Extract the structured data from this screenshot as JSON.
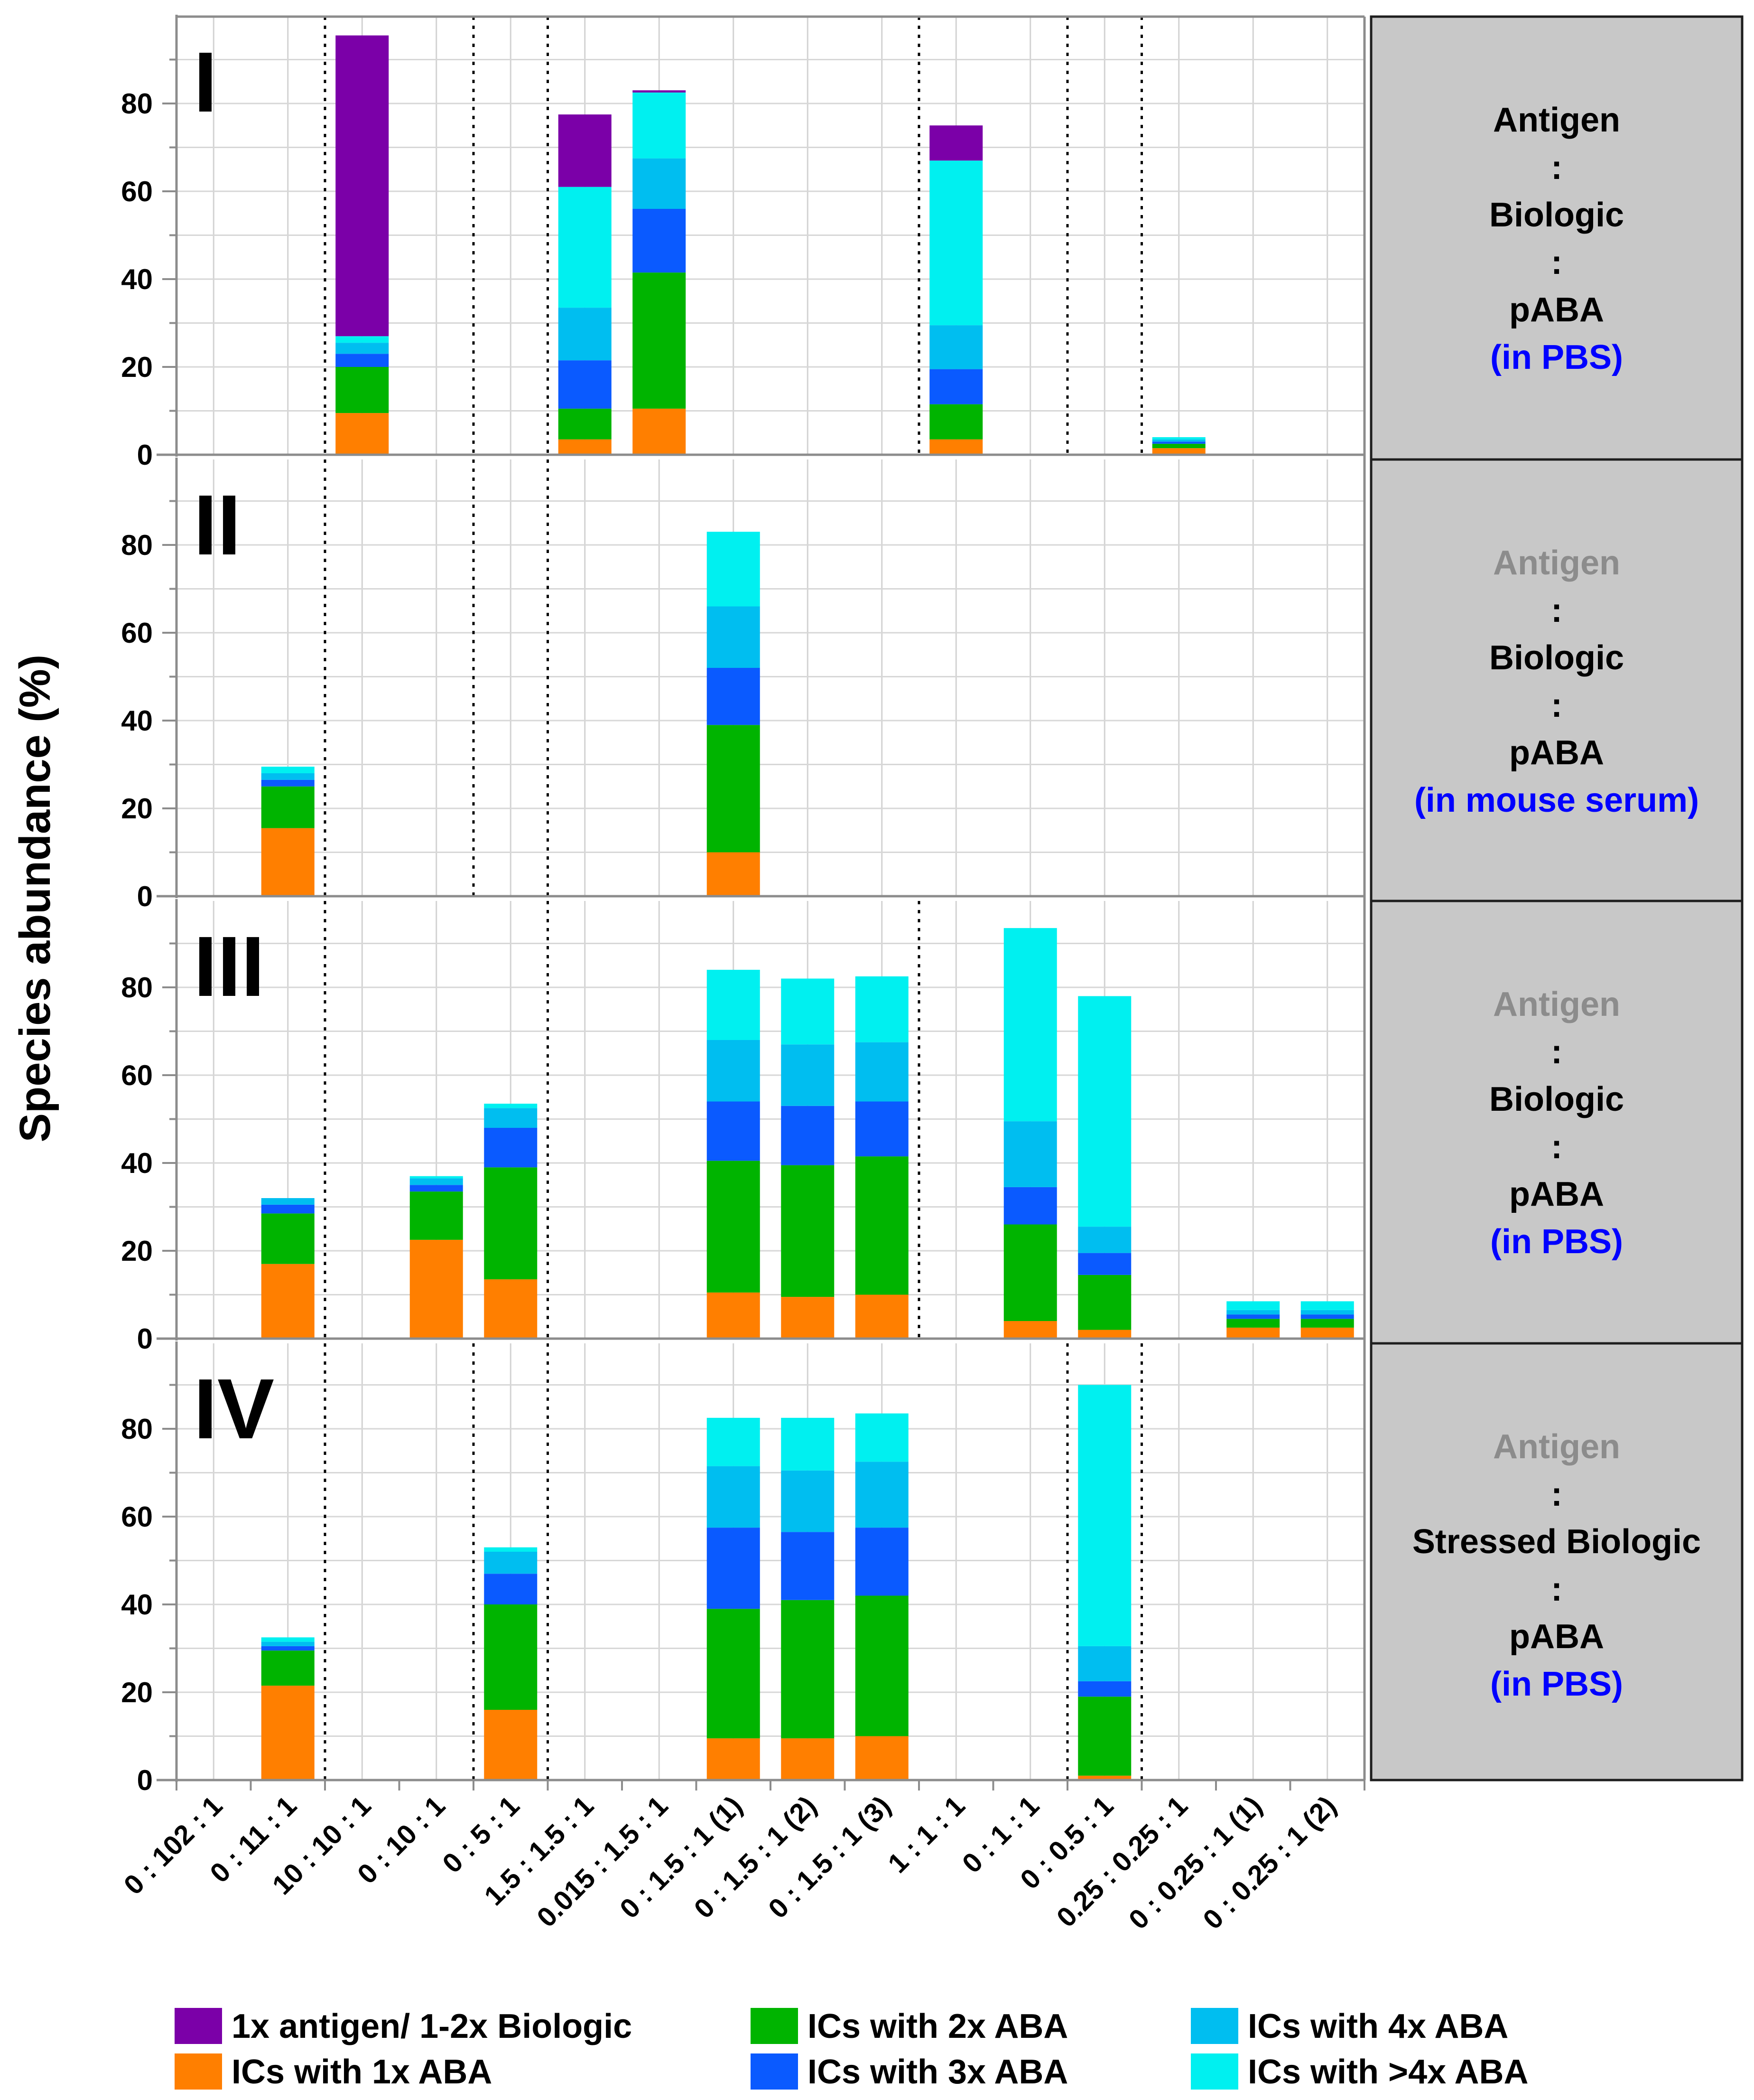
{
  "chart_data": {
    "type": "bar",
    "stacked": true,
    "ylabel": "Species abundance (%)",
    "ylim": [
      0,
      100
    ],
    "yticks": [
      0,
      20,
      40,
      60,
      80
    ],
    "categories": [
      "0 : 102 : 1",
      "0 : 11 : 1",
      "10 : 10 : 1",
      "0 : 10 : 1",
      "0 : 5 : 1",
      "1.5 : 1.5 : 1",
      "0.015 : 1.5 : 1",
      "0 : 1.5 : 1 (1)",
      "0 : 1.5 : 1 (2)",
      "0 : 1.5 : 1 (3)",
      "1 : 1 : 1",
      "0 : 1 : 1",
      "0 : 0.5 : 1",
      "0.25 : 0.25 : 1",
      "0 : 0.25 : 1 (1)",
      "0 : 0.25 : 1 (2)"
    ],
    "series_order": [
      "ICs with 1x ABA",
      "ICs with 2x ABA",
      "ICs with 3x ABA",
      "ICs with 4x ABA",
      "ICs with >4x ABA",
      "1x antigen/ 1-2x Biologic"
    ],
    "legend": [
      {
        "name": "1x antigen/ 1-2x Biologic",
        "color": "#7b00a8"
      },
      {
        "name": "ICs with 2x ABA",
        "color": "#00b400"
      },
      {
        "name": "ICs with 4x ABA",
        "color": "#00bef0"
      },
      {
        "name": "ICs with 1x ABA",
        "color": "#ff7f00"
      },
      {
        "name": "ICs with 3x ABA",
        "color": "#0a5aff"
      },
      {
        "name": "ICs with >4x ABA",
        "color": "#00f0f0"
      }
    ],
    "panels": [
      {
        "label": "I",
        "condition": [
          {
            "text": "Antigen",
            "color": "#000000"
          },
          {
            "text": ":",
            "color": "#000000"
          },
          {
            "text": "Biologic",
            "color": "#000000"
          },
          {
            "text": ":",
            "color": "#000000"
          },
          {
            "text": "pABA",
            "color": "#000000"
          },
          {
            "text": "(in PBS)",
            "color": "#0000ff"
          }
        ],
        "separators_after": [
          1,
          3,
          4,
          9,
          11,
          12
        ],
        "bars": [
          {
            "category_index": 2,
            "segments": [
              9.5,
              10.5,
              3,
              2.5,
              1.5,
              68.5
            ]
          },
          {
            "category_index": 5,
            "segments": [
              3.5,
              7,
              11,
              12,
              27.5,
              16.5
            ]
          },
          {
            "category_index": 6,
            "segments": [
              10.5,
              31,
              14.5,
              11.5,
              15,
              0.5
            ]
          },
          {
            "category_index": 10,
            "segments": [
              3.5,
              8,
              8,
              10,
              37.5,
              8
            ]
          },
          {
            "category_index": 13,
            "segments": [
              1.5,
              1,
              0.5,
              0.5,
              0.5,
              0
            ]
          }
        ]
      },
      {
        "label": "II",
        "condition": [
          {
            "text": "Antigen",
            "color": "#8c8c8c"
          },
          {
            "text": ":",
            "color": "#000000"
          },
          {
            "text": "Biologic",
            "color": "#000000"
          },
          {
            "text": ":",
            "color": "#000000"
          },
          {
            "text": "pABA",
            "color": "#000000"
          },
          {
            "text": "(in mouse serum)",
            "color": "#0000ff"
          }
        ],
        "separators_after": [
          1,
          3,
          4
        ],
        "bars": [
          {
            "category_index": 1,
            "segments": [
              15.5,
              9.5,
              1.5,
              1.5,
              1.5,
              0
            ]
          },
          {
            "category_index": 7,
            "segments": [
              10,
              29,
              13,
              14,
              17,
              0
            ]
          }
        ]
      },
      {
        "label": "III",
        "condition": [
          {
            "text": "Antigen",
            "color": "#8c8c8c"
          },
          {
            "text": ":",
            "color": "#000000"
          },
          {
            "text": "Biologic",
            "color": "#000000"
          },
          {
            "text": ":",
            "color": "#000000"
          },
          {
            "text": "pABA",
            "color": "#000000"
          },
          {
            "text": "(in PBS)",
            "color": "#0000ff"
          }
        ],
        "separators_after": [
          1,
          4,
          9
        ],
        "bars": [
          {
            "category_index": 1,
            "segments": [
              17,
              11.5,
              2,
              1.5,
              0,
              0
            ]
          },
          {
            "category_index": 3,
            "segments": [
              22.5,
              11,
              1.5,
              1.5,
              0.5,
              0
            ]
          },
          {
            "category_index": 4,
            "segments": [
              13.5,
              25.5,
              9,
              4.5,
              1,
              0
            ]
          },
          {
            "category_index": 7,
            "segments": [
              10.5,
              30,
              13.5,
              14,
              16,
              0
            ]
          },
          {
            "category_index": 8,
            "segments": [
              9.5,
              30,
              13.5,
              14,
              15,
              0
            ]
          },
          {
            "category_index": 9,
            "segments": [
              10,
              31.5,
              12.5,
              13.5,
              15,
              0
            ]
          },
          {
            "category_index": 11,
            "segments": [
              4,
              22,
              8.5,
              15,
              44,
              0
            ]
          },
          {
            "category_index": 12,
            "segments": [
              2,
              12.5,
              5,
              6,
              52.5,
              0
            ]
          },
          {
            "category_index": 14,
            "segments": [
              2.5,
              2,
              1,
              1,
              2,
              0
            ]
          },
          {
            "category_index": 15,
            "segments": [
              2.5,
              2,
              1,
              1,
              2,
              0
            ]
          }
        ]
      },
      {
        "label": "IV",
        "condition": [
          {
            "text": "Antigen",
            "color": "#8c8c8c"
          },
          {
            "text": ":",
            "color": "#000000"
          },
          {
            "text": "Stressed Biologic",
            "color": "#000000"
          },
          {
            "text": ":",
            "color": "#000000"
          },
          {
            "text": "pABA",
            "color": "#000000"
          },
          {
            "text": "(in PBS)",
            "color": "#0000ff"
          }
        ],
        "separators_after": [
          1,
          3,
          4,
          11,
          12
        ],
        "bars": [
          {
            "category_index": 1,
            "segments": [
              21.5,
              8,
              1,
              1,
              1,
              0
            ]
          },
          {
            "category_index": 4,
            "segments": [
              16,
              24,
              7,
              5,
              1,
              0
            ]
          },
          {
            "category_index": 7,
            "segments": [
              9.5,
              29.5,
              18.5,
              14,
              11,
              0
            ]
          },
          {
            "category_index": 8,
            "segments": [
              9.5,
              31.5,
              15.5,
              14,
              12,
              0
            ]
          },
          {
            "category_index": 9,
            "segments": [
              10,
              32,
              15.5,
              15,
              11,
              0
            ]
          },
          {
            "category_index": 12,
            "segments": [
              1,
              18,
              3.5,
              8,
              59.5,
              0
            ]
          }
        ]
      }
    ]
  }
}
